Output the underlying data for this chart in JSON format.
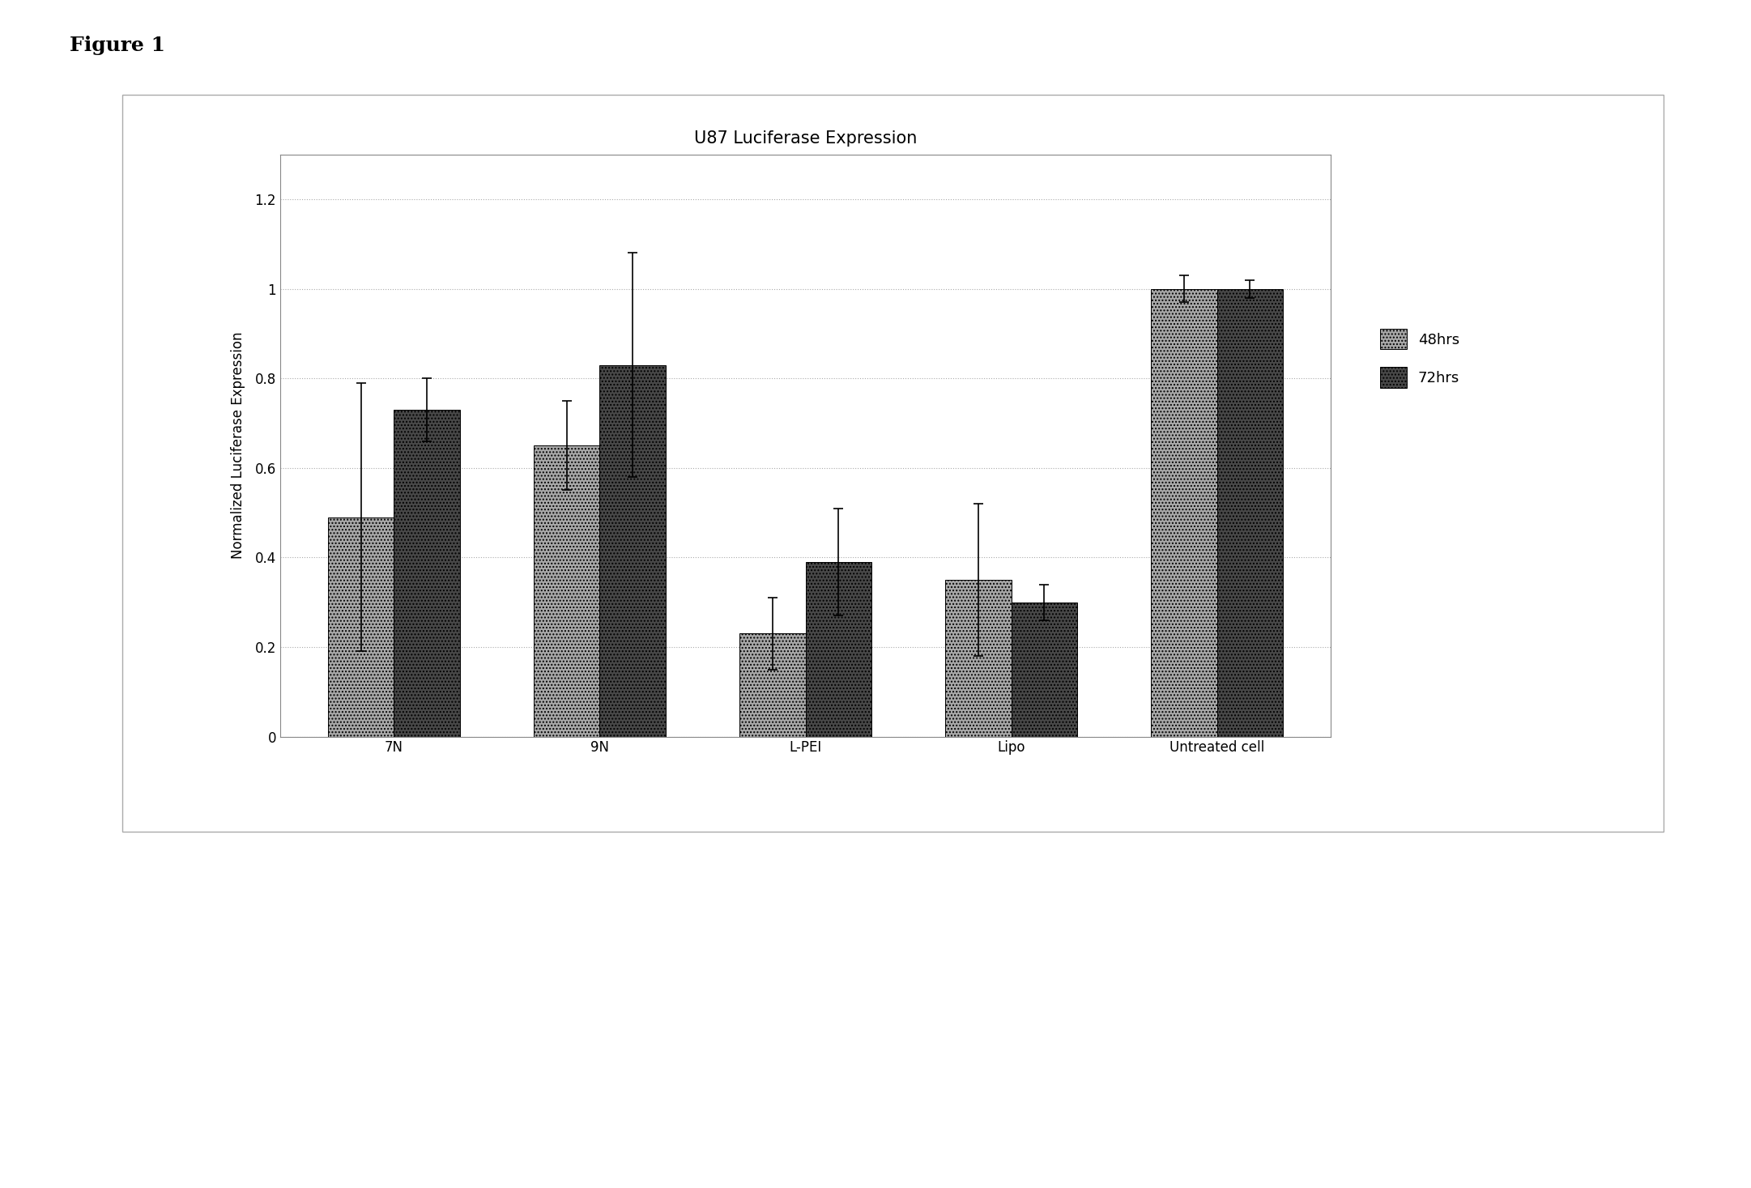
{
  "title": "U87 Luciferase Expression",
  "ylabel": "Normalized Luciferase Expression",
  "categories": [
    "7N",
    "9N",
    "L-PEI",
    "Lipo",
    "Untreated cell"
  ],
  "values_48hrs": [
    0.49,
    0.65,
    0.23,
    0.35,
    1.0
  ],
  "values_72hrs": [
    0.73,
    0.83,
    0.39,
    0.3,
    1.0
  ],
  "errors_48hrs": [
    0.3,
    0.1,
    0.08,
    0.17,
    0.03
  ],
  "errors_72hrs": [
    0.07,
    0.25,
    0.12,
    0.04,
    0.02
  ],
  "color_48hrs": "#a8a8a8",
  "color_72hrs": "#484848",
  "ylim": [
    0,
    1.3
  ],
  "yticks": [
    0,
    0.2,
    0.4,
    0.6,
    0.8,
    1.0,
    1.2
  ],
  "ytick_labels": [
    "0",
    "0.2",
    "0.4",
    "0.6",
    "0.8",
    "1",
    "1.2"
  ],
  "bar_width": 0.32,
  "figure_label": "Figure 1",
  "title_fontsize": 15,
  "axis_fontsize": 12,
  "tick_fontsize": 12,
  "legend_fontsize": 13,
  "background_color": "#ffffff",
  "plot_bg_color": "#ffffff",
  "box_color": "#cccccc"
}
